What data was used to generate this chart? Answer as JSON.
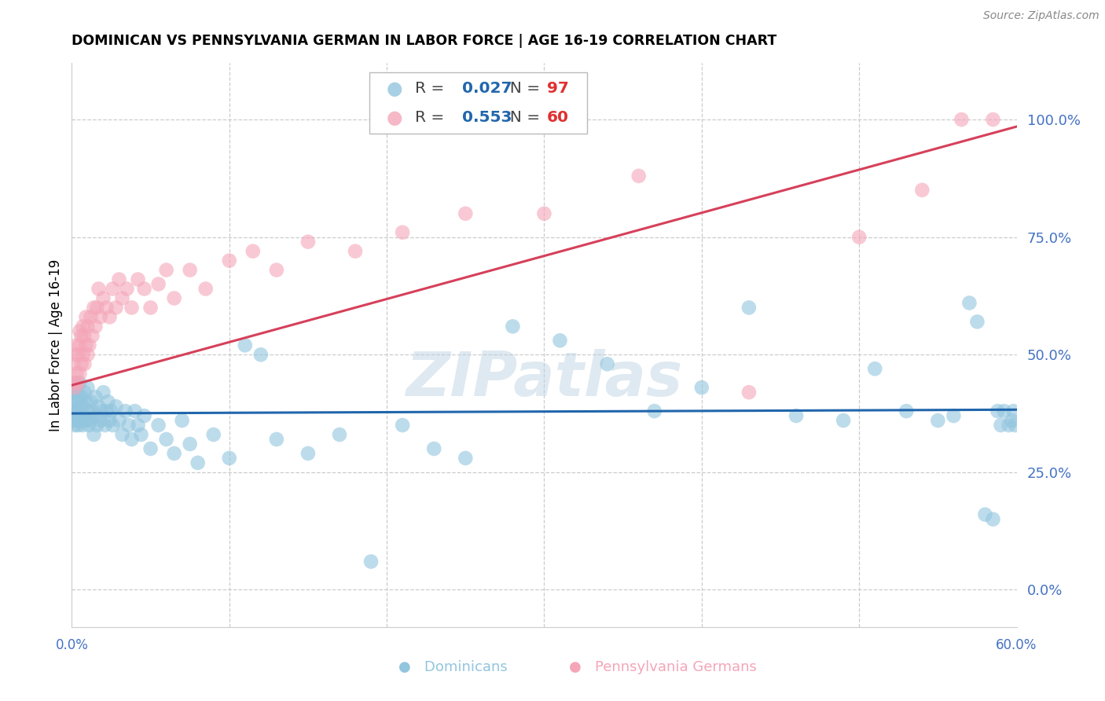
{
  "title": "DOMINICAN VS PENNSYLVANIA GERMAN IN LABOR FORCE | AGE 16-19 CORRELATION CHART",
  "source": "Source: ZipAtlas.com",
  "ylabel": "In Labor Force | Age 16-19",
  "xlim": [
    0.0,
    0.6
  ],
  "ylim": [
    -0.08,
    1.12
  ],
  "yticks": [
    0.0,
    0.25,
    0.5,
    0.75,
    1.0
  ],
  "xticks_show": [
    0.0,
    0.6
  ],
  "xticks_grid": [
    0.0,
    0.1,
    0.2,
    0.3,
    0.4,
    0.5,
    0.6
  ],
  "blue_color": "#92c5de",
  "pink_color": "#f4a6b8",
  "blue_line_color": "#2166ac",
  "pink_line_color": "#d6405a",
  "tick_color": "#4472c4",
  "grid_color": "#cccccc",
  "watermark": "ZIPatlas",
  "legend_blue_r": "0.027",
  "legend_blue_n": "97",
  "legend_pink_r": "0.553",
  "legend_pink_n": "60",
  "blue_trend_x": [
    0.0,
    0.6
  ],
  "blue_trend_y": [
    0.375,
    0.383
  ],
  "pink_trend_x": [
    0.0,
    0.6
  ],
  "pink_trend_y": [
    0.435,
    0.985
  ],
  "blue_scatter_x": [
    0.001,
    0.001,
    0.001,
    0.001,
    0.002,
    0.002,
    0.002,
    0.002,
    0.003,
    0.003,
    0.003,
    0.003,
    0.004,
    0.004,
    0.004,
    0.005,
    0.005,
    0.005,
    0.006,
    0.006,
    0.007,
    0.007,
    0.008,
    0.008,
    0.009,
    0.009,
    0.01,
    0.01,
    0.011,
    0.012,
    0.012,
    0.013,
    0.014,
    0.015,
    0.015,
    0.016,
    0.017,
    0.018,
    0.019,
    0.02,
    0.021,
    0.022,
    0.023,
    0.024,
    0.025,
    0.026,
    0.028,
    0.03,
    0.032,
    0.034,
    0.036,
    0.038,
    0.04,
    0.042,
    0.044,
    0.046,
    0.05,
    0.055,
    0.06,
    0.065,
    0.07,
    0.075,
    0.08,
    0.09,
    0.1,
    0.11,
    0.12,
    0.13,
    0.15,
    0.17,
    0.19,
    0.21,
    0.23,
    0.25,
    0.28,
    0.31,
    0.34,
    0.37,
    0.4,
    0.43,
    0.46,
    0.49,
    0.51,
    0.53,
    0.55,
    0.56,
    0.57,
    0.575,
    0.58,
    0.585,
    0.588,
    0.59,
    0.592,
    0.595,
    0.597,
    0.598,
    0.599
  ],
  "blue_scatter_y": [
    0.38,
    0.42,
    0.36,
    0.4,
    0.35,
    0.42,
    0.38,
    0.44,
    0.36,
    0.4,
    0.38,
    0.43,
    0.35,
    0.41,
    0.38,
    0.36,
    0.4,
    0.44,
    0.37,
    0.41,
    0.35,
    0.39,
    0.37,
    0.42,
    0.36,
    0.4,
    0.38,
    0.43,
    0.35,
    0.4,
    0.36,
    0.38,
    0.33,
    0.37,
    0.41,
    0.35,
    0.39,
    0.36,
    0.38,
    0.42,
    0.35,
    0.38,
    0.4,
    0.36,
    0.38,
    0.35,
    0.39,
    0.36,
    0.33,
    0.38,
    0.35,
    0.32,
    0.38,
    0.35,
    0.33,
    0.37,
    0.3,
    0.35,
    0.32,
    0.29,
    0.36,
    0.31,
    0.27,
    0.33,
    0.28,
    0.52,
    0.5,
    0.32,
    0.29,
    0.33,
    0.06,
    0.35,
    0.3,
    0.28,
    0.56,
    0.53,
    0.48,
    0.38,
    0.43,
    0.6,
    0.37,
    0.36,
    0.47,
    0.38,
    0.36,
    0.37,
    0.61,
    0.57,
    0.16,
    0.15,
    0.38,
    0.35,
    0.38,
    0.35,
    0.36,
    0.38,
    0.35
  ],
  "pink_scatter_x": [
    0.001,
    0.001,
    0.002,
    0.002,
    0.003,
    0.003,
    0.004,
    0.004,
    0.005,
    0.005,
    0.005,
    0.006,
    0.006,
    0.007,
    0.007,
    0.008,
    0.008,
    0.009,
    0.009,
    0.01,
    0.01,
    0.011,
    0.012,
    0.013,
    0.014,
    0.015,
    0.016,
    0.017,
    0.018,
    0.02,
    0.022,
    0.024,
    0.026,
    0.028,
    0.03,
    0.032,
    0.035,
    0.038,
    0.042,
    0.046,
    0.05,
    0.055,
    0.06,
    0.065,
    0.075,
    0.085,
    0.1,
    0.115,
    0.13,
    0.15,
    0.18,
    0.21,
    0.25,
    0.3,
    0.36,
    0.43,
    0.5,
    0.54,
    0.565,
    0.585
  ],
  "pink_scatter_y": [
    0.44,
    0.48,
    0.43,
    0.5,
    0.46,
    0.52,
    0.44,
    0.5,
    0.46,
    0.52,
    0.55,
    0.48,
    0.54,
    0.5,
    0.56,
    0.48,
    0.54,
    0.52,
    0.58,
    0.5,
    0.56,
    0.52,
    0.58,
    0.54,
    0.6,
    0.56,
    0.6,
    0.64,
    0.58,
    0.62,
    0.6,
    0.58,
    0.64,
    0.6,
    0.66,
    0.62,
    0.64,
    0.6,
    0.66,
    0.64,
    0.6,
    0.65,
    0.68,
    0.62,
    0.68,
    0.64,
    0.7,
    0.72,
    0.68,
    0.74,
    0.72,
    0.76,
    0.8,
    0.8,
    0.88,
    0.42,
    0.75,
    0.85,
    1.0,
    1.0
  ]
}
